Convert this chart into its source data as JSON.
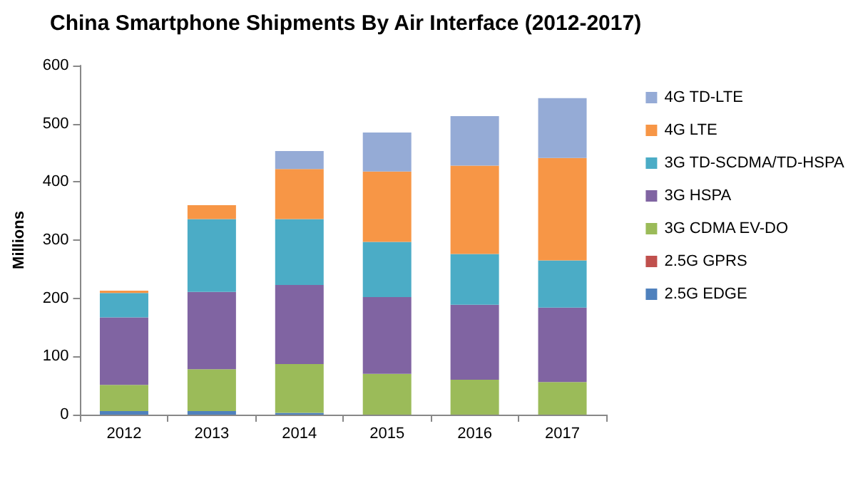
{
  "chart_data": {
    "type": "bar",
    "title": "China Smartphone Shipments By Air Interface (2012-2017)",
    "ylabel": "Millions",
    "categories": [
      "2012",
      "2013",
      "2014",
      "2015",
      "2016",
      "2017"
    ],
    "series": [
      {
        "name": "2.5G EDGE",
        "color": "#4f81bd",
        "values": [
          6,
          6,
          3,
          null,
          0,
          0
        ]
      },
      {
        "name": "2.5G GPRS",
        "color": "#c0504d",
        "values": [
          0,
          0,
          0,
          0,
          0,
          0
        ]
      },
      {
        "name": "3G CDMA EV-DO",
        "color": "#9bbb59",
        "values": [
          45,
          72,
          84,
          70,
          60,
          56
        ]
      },
      {
        "name": "3G HSPA",
        "color": "#8064a2",
        "values": [
          116,
          133,
          136,
          132,
          129,
          128
        ]
      },
      {
        "name": "3G TD-SCDMA/TD-HSPA",
        "color": "#4bacc6",
        "values": [
          42,
          125,
          113,
          95,
          87,
          81
        ]
      },
      {
        "name": "4G LTE",
        "color": "#f79646",
        "values": [
          4,
          24,
          86,
          121,
          152,
          176
        ]
      },
      {
        "name": "4G TD-LTE",
        "color": "#95abd6",
        "values": [
          0,
          0,
          31,
          67,
          85,
          103
        ]
      }
    ],
    "stacked": true,
    "ylim": [
      0,
      600
    ],
    "yticks": [
      0,
      100,
      200,
      300,
      400,
      500,
      600
    ],
    "grid": false,
    "legend": "right"
  }
}
